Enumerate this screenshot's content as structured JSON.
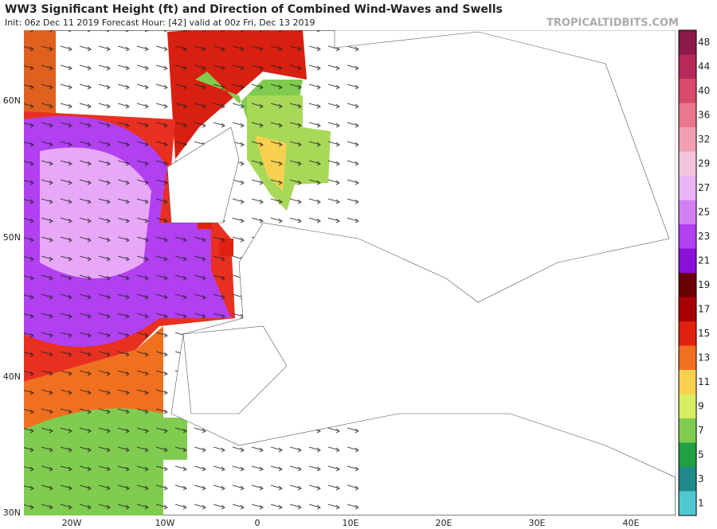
{
  "header": {
    "title": "WW3 Significant Height (ft) and Direction of Combined Wind-Waves and Swells",
    "subtitle": "Init: 06z Dec 11 2019   Forecast Hour: [42]   valid at 00z Fri, Dec 13 2019",
    "watermark": "TROPICALTIDBITS.COM"
  },
  "map": {
    "lat_labels": [
      "60N",
      "50N",
      "40N",
      "30N"
    ],
    "lon_labels": [
      "20W",
      "10W",
      "0",
      "10E",
      "20E",
      "30E",
      "40E"
    ]
  },
  "colorbar": {
    "ticks": [
      48,
      44,
      40,
      36,
      32,
      29,
      27,
      25,
      23,
      21,
      19,
      17,
      15,
      13,
      11,
      9,
      7,
      5,
      3,
      1
    ],
    "colors": [
      "#8b1a4a",
      "#b52a5a",
      "#d84a6a",
      "#e8788a",
      "#f0a0b0",
      "#f4c4dc",
      "#eab4f4",
      "#d080f0",
      "#b040f0",
      "#8a10d8",
      "#6a0000",
      "#a80000",
      "#e02010",
      "#f07020",
      "#f8d050",
      "#d8ec60",
      "#80cc50",
      "#20a040",
      "#208a8a",
      "#50c8d0"
    ]
  }
}
